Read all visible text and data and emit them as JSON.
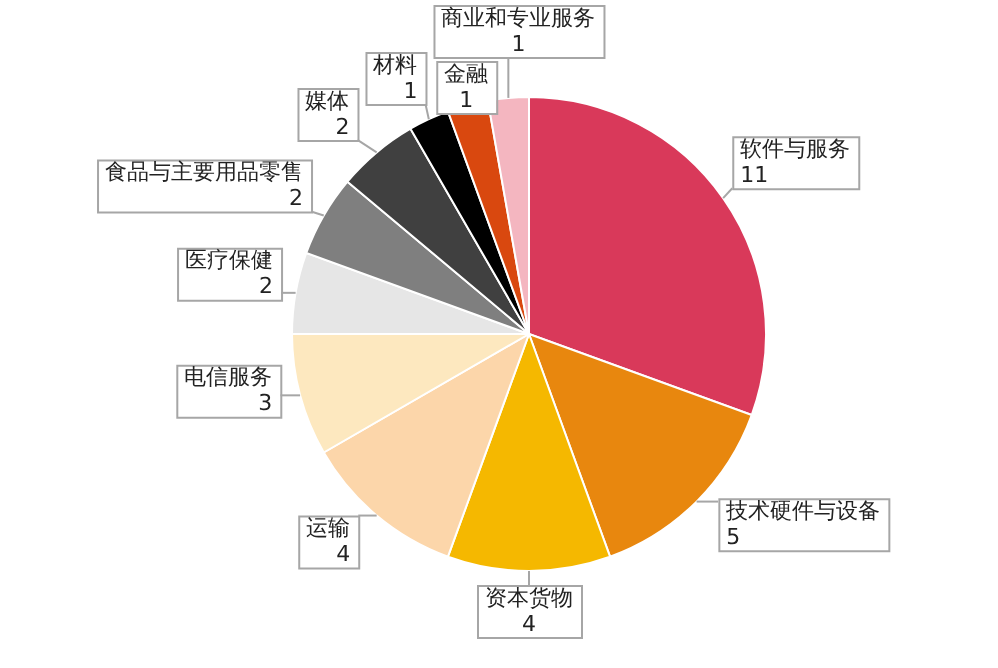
{
  "chart_data": {
    "type": "pie",
    "categories": [
      "软件与服务",
      "技术硬件与设备",
      "资本货物",
      "运输",
      "电信服务",
      "医疗保健",
      "食品与主要用品零售",
      "媒体",
      "材料",
      "金融",
      "商业和专业服务"
    ],
    "values": [
      11,
      5,
      4,
      4,
      3,
      2,
      2,
      2,
      1,
      1,
      1
    ],
    "colors": [
      "#d9395a",
      "#e8870e",
      "#f5b800",
      "#fcd6aa",
      "#fde8bf",
      "#e6e6e6",
      "#7f7f7f",
      "#404040",
      "#000000",
      "#d9480f",
      "#f4b6c0"
    ],
    "data_labels": true,
    "legend": false
  }
}
